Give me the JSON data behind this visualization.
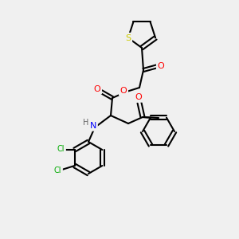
{
  "bg_color": "#f0f0f0",
  "bond_color": "#000000",
  "bond_width": 1.5,
  "atom_colors": {
    "O": "#ff0000",
    "N": "#0000ff",
    "S": "#cccc00",
    "Cl": "#00aa00",
    "H": "#666666",
    "C": "#000000"
  }
}
